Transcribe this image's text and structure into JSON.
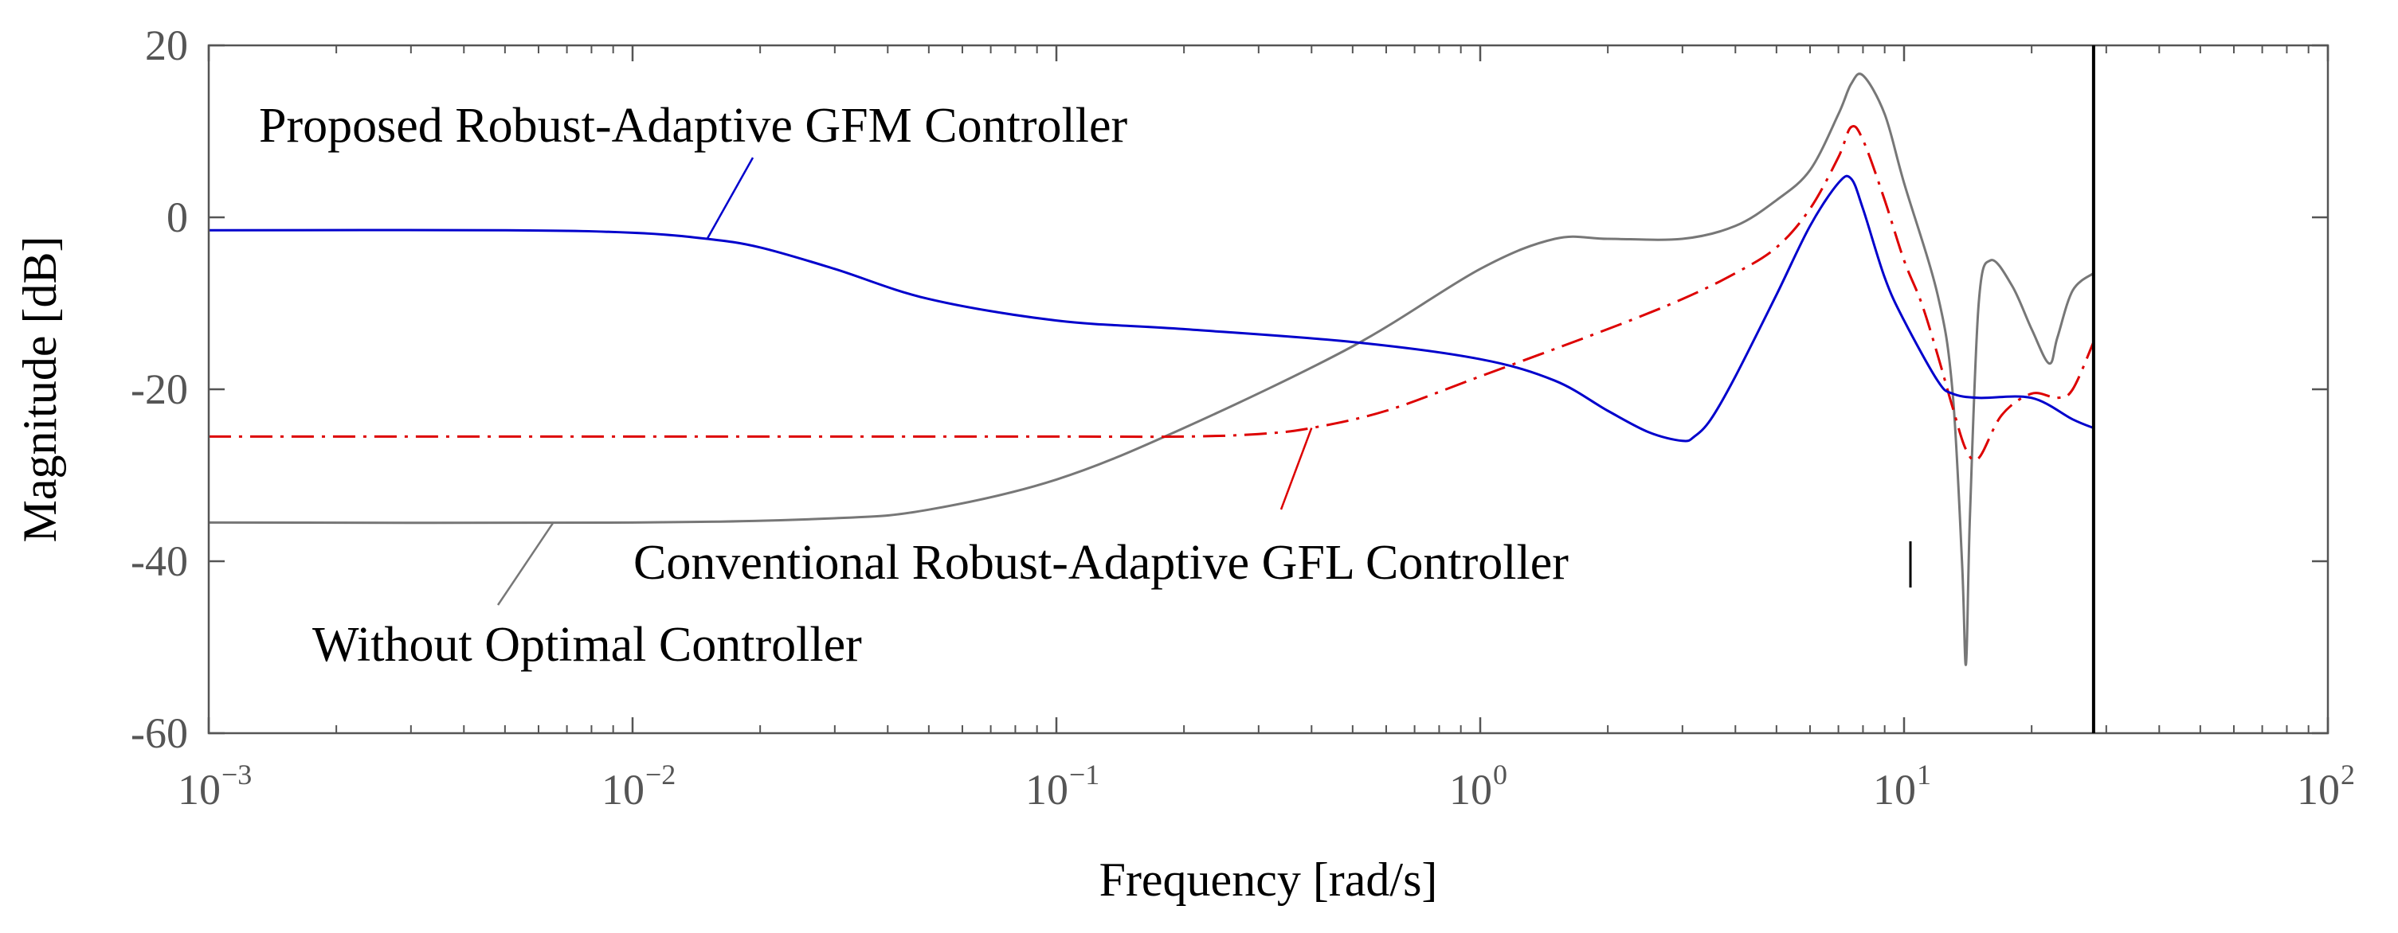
{
  "chart_data": {
    "type": "line",
    "title": "",
    "xlabel": "Frequency [rad/s]",
    "ylabel": "Magnitude [dB]",
    "xscale": "log",
    "xlim": [
      0.001,
      100
    ],
    "ylim": [
      -60,
      20
    ],
    "grid": false,
    "x_ticks": [
      {
        "base": "10",
        "exp": "−3",
        "value": 0.001
      },
      {
        "base": "10",
        "exp": "−2",
        "value": 0.01
      },
      {
        "base": "10",
        "exp": "−1",
        "value": 0.1
      },
      {
        "base": "10",
        "exp": "0",
        "value": 1
      },
      {
        "base": "10",
        "exp": "1",
        "value": 10
      },
      {
        "base": "10",
        "exp": "2",
        "value": 100
      }
    ],
    "y_ticks": [
      {
        "label": "20",
        "value": 20
      },
      {
        "label": "0",
        "value": 0
      },
      {
        "label": "-20",
        "value": -20
      },
      {
        "label": "-40",
        "value": -40
      },
      {
        "label": "-60",
        "value": -60
      }
    ],
    "vertical_line": {
      "x": 28
    },
    "series": [
      {
        "name": "Proposed Robust-Adaptive GFM Controller",
        "color": "#0000cc",
        "style": "solid",
        "x": [
          0.001,
          0.005,
          0.01,
          0.015,
          0.02,
          0.03,
          0.05,
          0.1,
          0.2,
          0.5,
          1,
          1.5,
          2,
          2.5,
          3,
          3.2,
          3.5,
          4,
          5,
          6,
          7,
          7.5,
          8,
          9,
          10,
          12,
          13,
          15,
          20,
          25,
          28
        ],
        "values": [
          -1.5,
          -1.5,
          -1.8,
          -2.5,
          -3.5,
          -6,
          -9.5,
          -12,
          -13,
          -14.5,
          -16.5,
          -19,
          -22.5,
          -25,
          -26,
          -25.5,
          -23.5,
          -18.5,
          -9,
          -1,
          4,
          4.5,
          1,
          -7,
          -12,
          -19,
          -20.5,
          -21,
          -21,
          -23.5,
          -24.5
        ]
      },
      {
        "name": "Conventional Robust-Adaptive GFL Controller",
        "color": "#dd0000",
        "style": "dashdot",
        "x": [
          0.001,
          0.01,
          0.1,
          0.2,
          0.3,
          0.4,
          0.6,
          1,
          2,
          3,
          4,
          5,
          6,
          7,
          7.5,
          8,
          9,
          10,
          11,
          12,
          13,
          14,
          15,
          17,
          20,
          23,
          25,
          28
        ],
        "values": [
          -25.5,
          -25.5,
          -25.5,
          -25.5,
          -25.2,
          -24.5,
          -22.5,
          -18.5,
          -13,
          -9.5,
          -6.5,
          -3.5,
          1,
          7,
          10.5,
          9,
          2,
          -5,
          -10,
          -16,
          -22,
          -27,
          -28,
          -23,
          -20.5,
          -21,
          -20,
          -14.5
        ]
      },
      {
        "name": "Without Optimal Controller",
        "color": "#777777",
        "style": "solid",
        "x": [
          0.001,
          0.01,
          0.03,
          0.05,
          0.1,
          0.2,
          0.5,
          1,
          1.5,
          2,
          3,
          4,
          5,
          6,
          7,
          7.5,
          8,
          9,
          10,
          12,
          13,
          13.7,
          14,
          14.3,
          15,
          16,
          18,
          20,
          22,
          23,
          25,
          28
        ],
        "values": [
          -35.5,
          -35.5,
          -35,
          -34,
          -30.5,
          -24.5,
          -15,
          -6,
          -2.5,
          -2.5,
          -2.5,
          -1,
          2,
          5.5,
          12,
          15.5,
          16.5,
          12,
          4,
          -9,
          -20,
          -40,
          -52,
          -35,
          -10,
          -5,
          -8,
          -13,
          -17,
          -14,
          -8.5,
          -6.5
        ]
      }
    ],
    "annotations": [
      {
        "text": "Proposed Robust-Adaptive GFM Controller",
        "target_series": 0
      },
      {
        "text": "Conventional Robust-Adaptive GFL Controller",
        "target_series": 1
      },
      {
        "text": "Without Optimal Controller",
        "target_series": 2
      }
    ]
  }
}
